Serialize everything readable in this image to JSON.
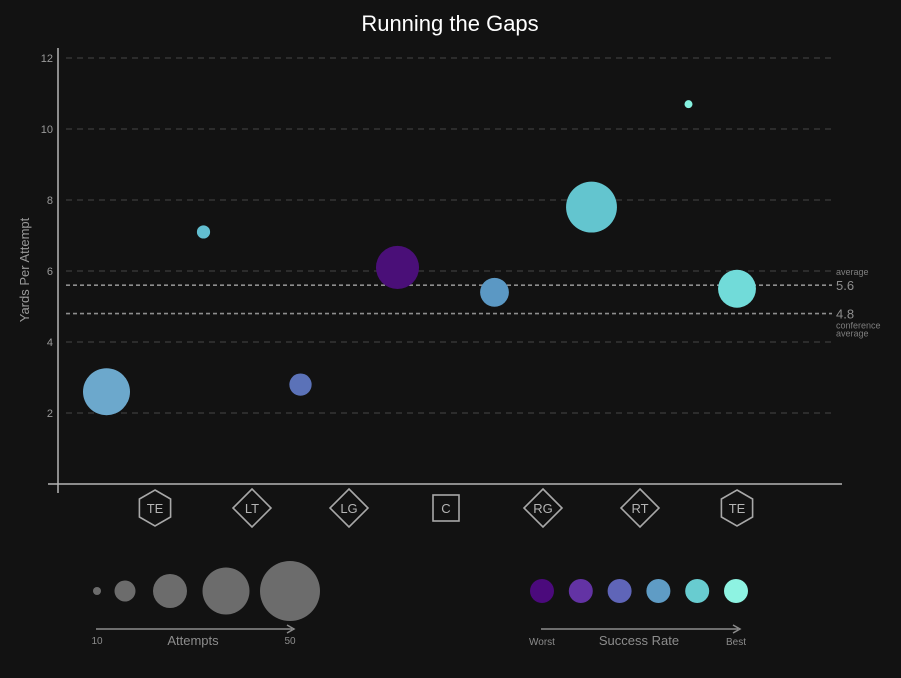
{
  "chart_data": {
    "type": "scatter",
    "title": "Running the Gaps",
    "ylabel": "Yards Per Attempt",
    "ylim": [
      0,
      12
    ],
    "yticks": [
      2,
      4,
      6,
      8,
      10,
      12
    ],
    "grid": true,
    "positions": [
      "TE",
      "LT",
      "LG",
      "C",
      "RG",
      "RT",
      "TE"
    ],
    "position_shapes": [
      "hexagon",
      "diamond",
      "diamond",
      "square",
      "diamond",
      "diamond",
      "hexagon"
    ],
    "points": [
      {
        "x": 0.5,
        "y": 2.6,
        "attempts": 40,
        "color": "#6ca8cc"
      },
      {
        "x": 1.5,
        "y": 7.1,
        "attempts": 14,
        "color": "#62bed0"
      },
      {
        "x": 2.5,
        "y": 2.8,
        "attempts": 21,
        "color": "#5b72b8"
      },
      {
        "x": 3.5,
        "y": 6.1,
        "attempts": 37,
        "color": "#4a0f78"
      },
      {
        "x": 4.5,
        "y": 5.4,
        "attempts": 26,
        "color": "#5b98c4"
      },
      {
        "x": 5.5,
        "y": 7.8,
        "attempts": 43,
        "color": "#63c5cf"
      },
      {
        "x": 6.5,
        "y": 10.7,
        "attempts": 10,
        "color": "#86f2e0"
      },
      {
        "x": 7.0,
        "y": 5.5,
        "attempts": 33,
        "color": "#71dbd9"
      }
    ],
    "reference_lines": [
      {
        "value": 5.6,
        "label": "5.6",
        "caption": "average"
      },
      {
        "value": 4.8,
        "label": "4.8",
        "caption": "conference average"
      }
    ],
    "size_legend": {
      "label": "Attempts",
      "min_label": "10",
      "max_label": "50",
      "color": "#6c6c6c",
      "steps": [
        10,
        20,
        30,
        40,
        50
      ]
    },
    "color_legend": {
      "label": "Success Rate",
      "min_label": "Worst",
      "max_label": "Best",
      "colors": [
        "#4b0a7c",
        "#6333a4",
        "#5f65b8",
        "#5f9cc5",
        "#68ccd0",
        "#8ef3e2"
      ]
    }
  }
}
